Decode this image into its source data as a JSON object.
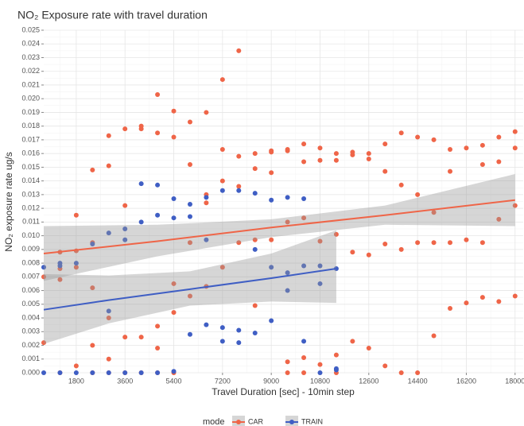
{
  "chart_data": {
    "type": "scatter",
    "title": "NO₂ Exposure rate with travel duration",
    "x_label": "Travel Duration [sec] - 10min step",
    "y_label": "NO₂ exposure rate ug/s",
    "legend_title": "mode",
    "legend": "bottom",
    "grid": true,
    "xlim": [
      600,
      18300
    ],
    "ylim": [
      0,
      0.025
    ],
    "xticks": [
      1800,
      3600,
      5400,
      7200,
      9000,
      10800,
      12600,
      14400,
      16200,
      18000
    ],
    "yticks": [
      {
        "value": 0,
        "label": "0.000"
      },
      0.001,
      0.002,
      0.003,
      0.004,
      0.005,
      0.006,
      0.007,
      0.008,
      0.009,
      {
        "value": 0.01,
        "label": "0.010"
      },
      0.011,
      0.012,
      0.013,
      0.014,
      0.015,
      0.016,
      0.017,
      0.018,
      0.019,
      {
        "value": 0.02,
        "label": "0.020"
      },
      0.021,
      0.022,
      0.023,
      0.024,
      0.025
    ],
    "band_color": "#999999",
    "series": [
      {
        "name": "CAR",
        "color": "#ef6548",
        "x": [
          600,
          600,
          1200,
          1200,
          1200,
          1200,
          1800,
          1800,
          1800,
          1800,
          2400,
          2400,
          2400,
          2400,
          2400,
          3000,
          3000,
          3000,
          3000,
          3000,
          3600,
          3600,
          3600,
          3600,
          4200,
          4200,
          4200,
          4200,
          4800,
          4800,
          4800,
          4800,
          4800,
          5400,
          5400,
          5400,
          5400,
          5400,
          6000,
          6000,
          6000,
          6000,
          6600,
          6600,
          6600,
          6600,
          7200,
          7200,
          7200,
          7200,
          7800,
          7800,
          7800,
          7800,
          8400,
          8400,
          8400,
          8400,
          9000,
          9000,
          9000,
          9000,
          9600,
          9600,
          9600,
          9600,
          9600,
          10200,
          10200,
          10200,
          10200,
          10200,
          10800,
          10800,
          10800,
          10800,
          11400,
          11400,
          11400,
          11400,
          11400,
          12000,
          12000,
          12000,
          12000,
          12600,
          12600,
          12600,
          12600,
          13200,
          13200,
          13200,
          13200,
          13800,
          13800,
          13800,
          13800,
          14400,
          14400,
          14400,
          14400,
          15000,
          15000,
          15000,
          15000,
          15600,
          15600,
          15600,
          15600,
          16200,
          16200,
          16200,
          16800,
          16800,
          16800,
          16800,
          17400,
          17400,
          17400,
          17400,
          18000,
          18000,
          18000,
          18000
        ],
        "values": [
          0.0022,
          0.007,
          0,
          0.0068,
          0.0076,
          0.0088,
          0.0005,
          0.0077,
          0.0089,
          0.0115,
          0,
          0.002,
          0.0062,
          0.0095,
          0.0148,
          0,
          0.001,
          0.004,
          0.0151,
          0.0173,
          0,
          0.0026,
          0.0122,
          0.0178,
          0,
          0.0026,
          0.0178,
          0.018,
          0,
          0.0018,
          0.0034,
          0.0175,
          0.0203,
          0,
          0.0044,
          0.0065,
          0.0172,
          0.0191,
          0.0056,
          0.0095,
          0.0152,
          0.0183,
          0.0063,
          0.0124,
          0.013,
          0.019,
          0.0077,
          0.014,
          0.0163,
          0.0214,
          0.0095,
          0.0136,
          0.0158,
          0.0235,
          0.0049,
          0.0097,
          0.0149,
          0.016,
          0.0097,
          0.0146,
          0.0161,
          0.0162,
          0,
          0.0008,
          0.011,
          0.0162,
          0.0163,
          0,
          0.0011,
          0.0113,
          0.0154,
          0.0167,
          0.0006,
          0.0096,
          0.0155,
          0.0164,
          0,
          0.0013,
          0.0101,
          0.0155,
          0.016,
          0.0023,
          0.0088,
          0.0159,
          0.0161,
          0.0018,
          0.0086,
          0.0156,
          0.016,
          0.0005,
          0.0094,
          0.0147,
          0.0167,
          0,
          0.009,
          0.0137,
          0.0175,
          0,
          0.0095,
          0.013,
          0.0172,
          0.0027,
          0.0095,
          0.0117,
          0.017,
          0.0047,
          0.0095,
          0.0147,
          0.0163,
          0.0051,
          0.0097,
          0.0164,
          0.0055,
          0.0095,
          0.0152,
          0.0166,
          0.0052,
          0.0112,
          0.0154,
          0.0172,
          0.0056,
          0.0122,
          0.0164,
          0.0176
        ],
        "fit": {
          "x": [
            600,
            4800,
            9000,
            13200,
            18000
          ],
          "values": [
            0.0087,
            0.0096,
            0.0106,
            0.0115,
            0.0126
          ],
          "lower": [
            0.0067,
            0.0085,
            0.0099,
            0.0108,
            0.0107
          ],
          "upper": [
            0.0107,
            0.0108,
            0.0112,
            0.0122,
            0.0145
          ]
        }
      },
      {
        "name": "TRAIN",
        "color": "#3f5ec4",
        "x": [
          600,
          600,
          1200,
          1200,
          1200,
          1800,
          1800,
          2400,
          2400,
          3000,
          3000,
          3000,
          3600,
          3600,
          3600,
          4200,
          4200,
          4200,
          4800,
          4800,
          4800,
          5400,
          5400,
          5400,
          6000,
          6000,
          6000,
          6600,
          6600,
          6600,
          7200,
          7200,
          7200,
          7800,
          7800,
          7800,
          8400,
          8400,
          8400,
          9000,
          9000,
          9000,
          9600,
          9600,
          9600,
          10200,
          10200,
          10200,
          10800,
          10800,
          10800,
          11400,
          11400,
          11400
        ],
        "values": [
          0,
          0.0077,
          0,
          0.008,
          0.0078,
          0,
          0.008,
          0,
          0.0094,
          0,
          0.0045,
          0.0102,
          0,
          0.0097,
          0.0105,
          0,
          0.011,
          0.0138,
          0,
          0.0115,
          0.0137,
          0.0001,
          0.0113,
          0.0127,
          0.0028,
          0.0114,
          0.0123,
          0.0035,
          0.0097,
          0.0128,
          0.0023,
          0.0033,
          0.0133,
          0.0022,
          0.0031,
          0.0133,
          0.0029,
          0.009,
          0.0131,
          0.0038,
          0.0077,
          0.0126,
          0.006,
          0.0073,
          0.0128,
          0.0023,
          0.0078,
          0.0127,
          0,
          0.0065,
          0.0078,
          0.0002,
          0.0003,
          0.0076
        ],
        "fit": {
          "x": [
            600,
            3000,
            6000,
            9000,
            11400
          ],
          "values": [
            0.0046,
            0.0053,
            0.0061,
            0.0069,
            0.0076
          ],
          "lower": [
            0.0021,
            0.0036,
            0.0049,
            0.0052,
            0.0051
          ],
          "upper": [
            0.0072,
            0.0071,
            0.0074,
            0.0087,
            0.0104
          ]
        }
      }
    ]
  }
}
